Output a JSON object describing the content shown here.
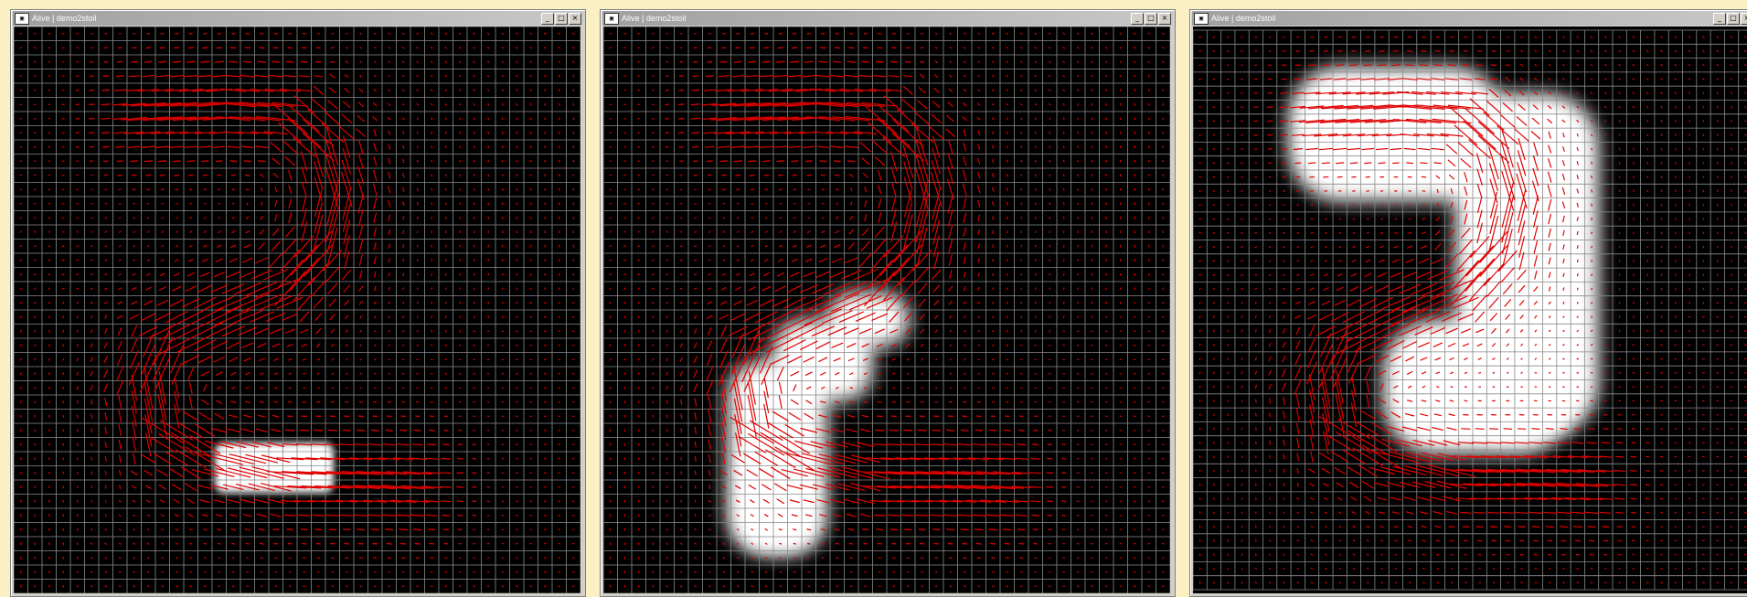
{
  "windows": [
    {
      "title": "Alive | demo2stoil",
      "controls": [
        "_",
        "□",
        "×"
      ],
      "fill_blob": "bottom-bar"
    },
    {
      "title": "Alive | demo2stoil",
      "controls": [
        "_",
        "□",
        "×"
      ],
      "fill_blob": "mid-curve"
    },
    {
      "title": "Alive | demo2stoil",
      "controls": [
        "_",
        "□",
        "×"
      ],
      "fill_blob": "full-two"
    }
  ],
  "colors": {
    "page_background": "#fbefc4",
    "canvas_background": "#000000",
    "grid_line": "#8a8a8a",
    "vector_color": "#e00000",
    "density_color": "#ffffff"
  },
  "grid": {
    "rows": 40,
    "cols": 40
  }
}
